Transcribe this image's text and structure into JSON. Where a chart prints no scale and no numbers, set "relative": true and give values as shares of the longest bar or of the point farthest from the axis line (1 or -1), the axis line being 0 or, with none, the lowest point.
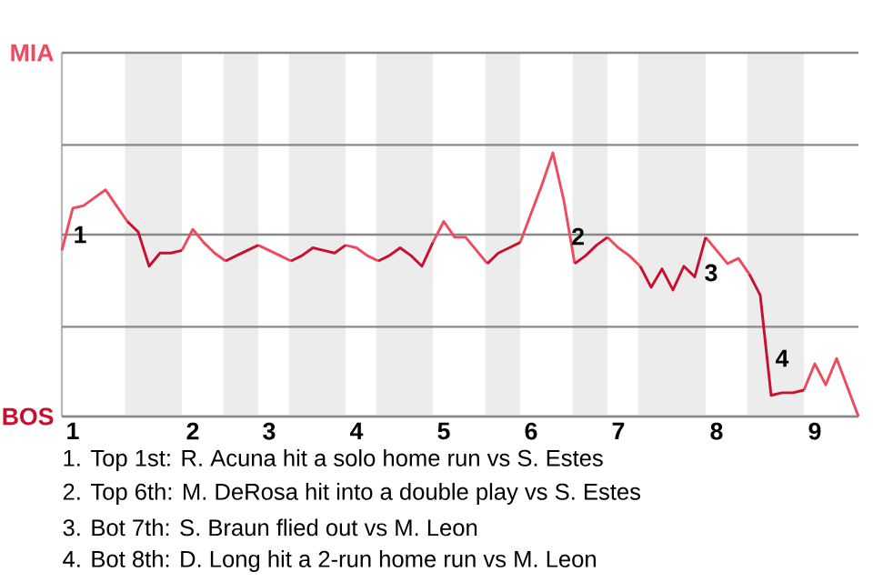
{
  "chart_data": {
    "type": "line",
    "relative": true,
    "categories": [
      null,
      "1",
      null,
      null,
      null,
      null,
      null,
      null,
      null,
      null,
      null,
      null,
      "2",
      null,
      null,
      null,
      null,
      null,
      null,
      "3",
      null,
      null,
      null,
      null,
      null,
      null,
      null,
      "4",
      null,
      null,
      null,
      null,
      null,
      null,
      null,
      "5",
      null,
      null,
      null,
      null,
      null,
      null,
      null,
      "6",
      null,
      null,
      null,
      null,
      null,
      null,
      null,
      "7",
      null,
      null,
      null,
      null,
      null,
      null,
      null,
      null,
      "8",
      null,
      null,
      null,
      null,
      null,
      null,
      null,
      null,
      "9",
      null,
      null,
      null,
      null
    ],
    "series": [
      {
        "color": "#ef4a5e",
        "values": [
          0.63,
          0.79,
          0.8,
          0.83,
          0.86,
          0.8,
          0.74,
          null,
          null,
          null,
          null,
          0.63,
          0.71,
          0.66,
          0.62,
          0.59,
          null,
          null,
          0.65,
          0.63,
          0.61,
          0.59,
          null,
          null,
          null,
          null,
          0.65,
          0.64,
          0.61,
          0.59,
          null,
          null,
          null,
          null,
          0.66,
          0.74,
          0.68,
          0.68,
          0.63,
          0.58,
          null,
          null,
          0.66,
          0.77,
          0.88,
          1,
          0.82,
          0.58,
          null,
          null,
          0.68,
          0.64,
          0.61,
          0.57,
          null,
          null,
          null,
          null,
          null,
          0.68,
          0.63,
          0.58,
          0.6,
          0.54,
          null,
          null,
          null,
          null,
          0.1,
          0.2,
          0.12,
          0.22,
          0.11,
          0
        ]
      },
      {
        "color": "#c8102e",
        "values": [
          null,
          null,
          null,
          null,
          null,
          null,
          0.74,
          0.7,
          0.57,
          0.62,
          0.62,
          0.63,
          null,
          null,
          null,
          0.59,
          0.61,
          0.63,
          0.65,
          null,
          null,
          0.59,
          0.61,
          0.64,
          0.63,
          0.62,
          0.65,
          null,
          null,
          0.59,
          0.61,
          0.64,
          0.61,
          0.57,
          0.66,
          null,
          null,
          null,
          null,
          0.58,
          0.62,
          0.64,
          0.66,
          null,
          null,
          null,
          null,
          0.58,
          0.61,
          0.65,
          0.68,
          null,
          null,
          0.57,
          0.49,
          0.56,
          0.48,
          0.57,
          0.53,
          0.68,
          null,
          null,
          null,
          0.54,
          0.46,
          0.08,
          0.09,
          0.09,
          0.1,
          null,
          null,
          null,
          null,
          null
        ]
      }
    ],
    "ref_lines": [
      {
        "axis": "y",
        "value": 0,
        "label": "BOS",
        "color": "#888888"
      },
      {
        "axis": "y",
        "value": 0.34,
        "color": "#888888"
      },
      {
        "axis": "y",
        "value": 0.69,
        "color": "#888888"
      },
      {
        "axis": "y",
        "value": 1.03,
        "color": "#888888"
      },
      {
        "axis": "y",
        "value": 1.38,
        "label": "MIA",
        "color": "#888888"
      }
    ],
    "annotations": [
      "1",
      "2",
      "3",
      "4",
      "1. Top 1st: R. Acuna hit a solo home run vs S. Estes",
      "2. Top 6th: M. DeRosa hit into a double play vs S. Estes",
      "3. Bot 7th: S. Braun flied out vs M. Leon",
      "4. Bot 8th: D. Long hit a 2-run home run vs M. Leon"
    ]
  }
}
